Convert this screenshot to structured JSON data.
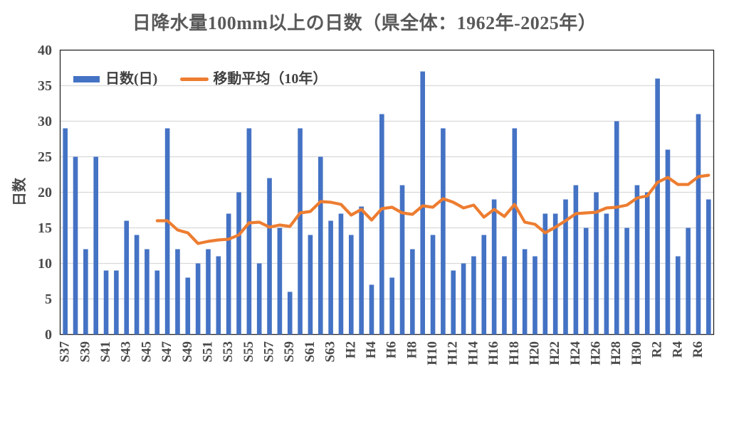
{
  "title": "日降水量100mm以上の日数（県全体：1962年-2025年）",
  "legend": {
    "bars": "日数(日)",
    "line": "移動平均（10年）"
  },
  "y_axis_title": "日数",
  "colors": {
    "bar": "#4472C4",
    "line": "#ED7D31",
    "grid": "#D9D9D9",
    "plot_border": "#262626",
    "text": "#595959",
    "tick_text": "#4a4a4a"
  },
  "chart_data": {
    "type": "bar",
    "title": "日降水量100mm以上の日数（県全体：1962年-2025年）",
    "xlabel": "",
    "ylabel": "日数",
    "ylim": [
      0,
      40
    ],
    "yticks": [
      0,
      5,
      10,
      15,
      20,
      25,
      30,
      35,
      40
    ],
    "grid": "horizontal",
    "legend_position": "top-left-inside",
    "x_tick_every": 2,
    "categories": [
      "S37",
      "S38",
      "S39",
      "S40",
      "S41",
      "S42",
      "S43",
      "S44",
      "S45",
      "S46",
      "S47",
      "S48",
      "S49",
      "S50",
      "S51",
      "S52",
      "S53",
      "S54",
      "S55",
      "S56",
      "S57",
      "S58",
      "S59",
      "S60",
      "S61",
      "S62",
      "S63",
      "H1",
      "H2",
      "H3",
      "H4",
      "H5",
      "H6",
      "H7",
      "H8",
      "H9",
      "H10",
      "H11",
      "H12",
      "H13",
      "H14",
      "H15",
      "H16",
      "H17",
      "H18",
      "H19",
      "H20",
      "H21",
      "H22",
      "H23",
      "H24",
      "H25",
      "H26",
      "H27",
      "H28",
      "H29",
      "H30",
      "R1",
      "R2",
      "R3",
      "R4",
      "R5",
      "R6",
      "R7"
    ],
    "shown_tick_labels": [
      "S37",
      "S39",
      "S41",
      "S43",
      "S45",
      "S47",
      "S49",
      "S51",
      "S53",
      "S55",
      "S57",
      "S59",
      "S61",
      "S63",
      "H2",
      "H4",
      "H6",
      "H8",
      "H10",
      "H12",
      "H14",
      "H16",
      "H18",
      "H20",
      "H22",
      "H24",
      "H26",
      "H28",
      "H30",
      "R2",
      "R4",
      "R6"
    ],
    "series": [
      {
        "name": "日数(日)",
        "type": "bar",
        "color": "#4472C4",
        "values": [
          29,
          25,
          12,
          25,
          9,
          9,
          16,
          14,
          12,
          9,
          29,
          12,
          8,
          10,
          12,
          11,
          17,
          20,
          29,
          10,
          22,
          15,
          6,
          29,
          14,
          25,
          16,
          17,
          14,
          18,
          7,
          31,
          8,
          21,
          12,
          37,
          14,
          29,
          9,
          10,
          11,
          14,
          19,
          11,
          29,
          12,
          11,
          17,
          17,
          19,
          21,
          15,
          20,
          17,
          30,
          15,
          21,
          20,
          36,
          26,
          11,
          15,
          31,
          19
        ]
      },
      {
        "name": "移動平均（10年）",
        "type": "line",
        "color": "#ED7D31",
        "window": 10,
        "start_index": 9,
        "values": [
          16.0,
          16.0,
          14.7,
          14.3,
          12.8,
          13.1,
          13.3,
          13.4,
          14.0,
          15.7,
          15.8,
          15.1,
          15.4,
          15.2,
          17.1,
          17.3,
          18.7,
          18.6,
          18.3,
          16.8,
          17.6,
          16.1,
          17.7,
          17.9,
          17.1,
          16.9,
          18.1,
          17.9,
          19.1,
          18.6,
          17.8,
          18.2,
          16.5,
          17.6,
          16.6,
          18.3,
          15.8,
          15.5,
          14.3,
          15.1,
          16.0,
          17.0,
          17.1,
          17.2,
          17.8,
          17.9,
          18.2,
          19.2,
          19.5,
          21.4,
          22.1,
          21.1,
          21.1,
          22.2,
          22.4
        ]
      }
    ]
  }
}
